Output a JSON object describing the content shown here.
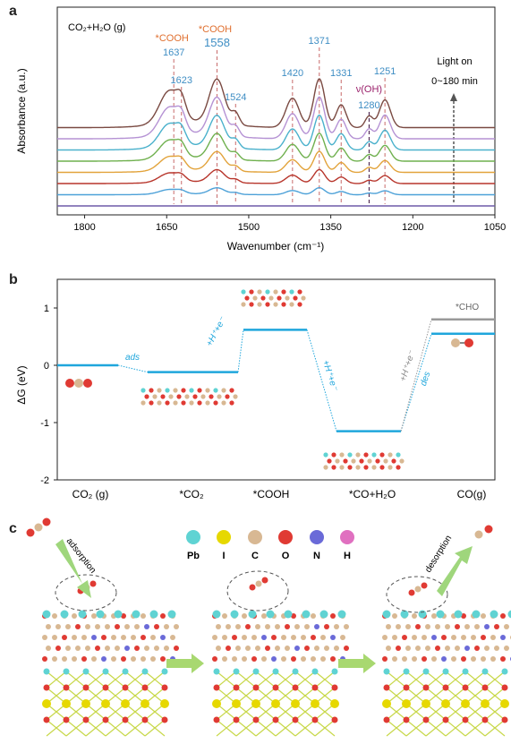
{
  "panels": {
    "a": "a",
    "b": "b",
    "c": "c"
  },
  "chart_data": [
    {
      "type": "line",
      "panel": "a",
      "ylabel": "Absorbance (a.u.)",
      "xlabel": "Wavenumber (cm⁻¹)",
      "xlim": [
        1850,
        1050
      ],
      "x_reversed": true,
      "x_ticks": [
        1800,
        1650,
        1500,
        1350,
        1200,
        1050
      ],
      "inset_text": "CO₂+H₂O (g)",
      "arrow_label_1": "Light on",
      "arrow_label_2": "0~180 min",
      "series_count": 8,
      "series_colors": [
        "#6e5aa8",
        "#4da1d8",
        "#b7352b",
        "#e2a33b",
        "#6fb04e",
        "#4ab1cc",
        "#b592d4",
        "#7a4a42"
      ],
      "bands": [
        {
          "x": 1637,
          "label": "1637",
          "tag": "*COOH",
          "label_color": "#3f8ec4",
          "tag_color": "#e07030"
        },
        {
          "x": 1623,
          "label": "1623",
          "label_color": "#3f8ec4"
        },
        {
          "x": 1558,
          "label": "1558",
          "tag": "*COOH",
          "label_color": "#3f8ec4",
          "tag_color": "#e07030"
        },
        {
          "x": 1524,
          "label": "1524",
          "label_color": "#3f8ec4"
        },
        {
          "x": 1420,
          "label": "1420",
          "label_color": "#3f8ec4"
        },
        {
          "x": 1371,
          "label": "1371",
          "label_color": "#3f8ec4"
        },
        {
          "x": 1331,
          "label": "1331",
          "label_color": "#3f8ec4"
        },
        {
          "x": 1280,
          "label": "1280",
          "tag": "ν(OH)",
          "label_color": "#3f8ec4",
          "tag_color": "#9a1f6a"
        },
        {
          "x": 1251,
          "label": "1251",
          "label_color": "#3f8ec4"
        }
      ]
    },
    {
      "type": "line",
      "panel": "b",
      "ylabel": "ΔG (eV)",
      "ylim": [
        -2,
        1.5
      ],
      "y_ticks": [
        1,
        0,
        -1,
        -2
      ],
      "categories": [
        "CO₂ (g)",
        "*CO₂",
        "*COOH",
        "*CO+H₂O",
        "CO(g)"
      ],
      "levels": [
        0,
        -0.12,
        0.62,
        -1.15,
        0.55
      ],
      "cho_level": 0.8,
      "cho_label": "*CHO",
      "step_labels": [
        "ads",
        "+H⁺+e⁻",
        "+H⁺+e⁻",
        "des",
        "+H⁺+e⁻"
      ]
    }
  ],
  "legend_c": [
    {
      "label": "Pb",
      "color": "#5fd3d3"
    },
    {
      "label": "I",
      "color": "#e6d800"
    },
    {
      "label": "C",
      "color": "#d8b893"
    },
    {
      "label": "O",
      "color": "#e03a33"
    },
    {
      "label": "N",
      "color": "#6a6ad8"
    },
    {
      "label": "H",
      "color": "#e070c0"
    }
  ],
  "panel_c": {
    "adsorption": "adsorption",
    "desorption": "desorption"
  }
}
